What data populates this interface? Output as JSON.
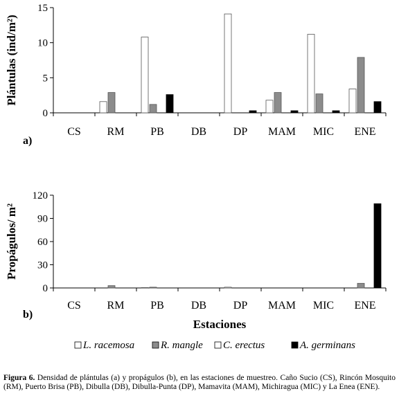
{
  "chart_data": [
    {
      "type": "bar",
      "panel_label": "a)",
      "ylabel": "Plántulas (ind/m²)",
      "xlabel": "",
      "ylim": [
        0,
        15
      ],
      "yticks": [
        0,
        5,
        10,
        15
      ],
      "categories": [
        "CS",
        "RM",
        "PB",
        "DB",
        "DP",
        "MAM",
        "MIC",
        "ENE"
      ],
      "series": [
        {
          "name": "L. racemosa",
          "values": [
            0,
            1.6,
            10.8,
            0,
            14.1,
            1.8,
            11.2,
            3.4
          ]
        },
        {
          "name": "R. mangle",
          "values": [
            0,
            2.9,
            1.2,
            0,
            0,
            2.9,
            2.7,
            7.9
          ]
        },
        {
          "name": "C. erectus",
          "values": [
            0,
            0,
            0,
            0,
            0,
            0,
            0,
            0
          ]
        },
        {
          "name": "A. germinans",
          "values": [
            0,
            0,
            2.6,
            0,
            0.3,
            0.3,
            0.3,
            1.6
          ]
        }
      ]
    },
    {
      "type": "bar",
      "panel_label": "b)",
      "ylabel": "Propágulos/ m²",
      "xlabel": "Estaciones",
      "ylim": [
        0,
        120
      ],
      "yticks": [
        0,
        30,
        60,
        90,
        120
      ],
      "categories": [
        "CS",
        "RM",
        "PB",
        "DB",
        "DP",
        "MAM",
        "MIC",
        "ENE"
      ],
      "series": [
        {
          "name": "L. racemosa",
          "values": [
            0,
            0,
            0.5,
            0,
            1,
            0,
            0,
            0
          ]
        },
        {
          "name": "R. mangle",
          "values": [
            0,
            3,
            1,
            0,
            0,
            0,
            0,
            6
          ]
        },
        {
          "name": "C. erectus",
          "values": [
            0,
            0,
            0,
            0,
            0,
            0,
            0,
            0
          ]
        },
        {
          "name": "A. germinans",
          "values": [
            0,
            0,
            0,
            0,
            0,
            0,
            0,
            109
          ]
        }
      ]
    }
  ],
  "legend": [
    {
      "name": "L. racemosa",
      "color": "#ffffff"
    },
    {
      "name": "R. mangle",
      "color": "#8c8c8c"
    },
    {
      "name": "C. erectus",
      "color": "#ffffff"
    },
    {
      "name": "A. germinans",
      "color": "#000000"
    }
  ],
  "series_colors": [
    "#ffffff",
    "#8c8c8c",
    "#ffffff",
    "#000000"
  ],
  "caption": {
    "label": "Figura 6.",
    "text": "Densidad de plántulas (a) y propágulos (b), en las estaciones de muestreo. Caño Sucio (CS), Rincón Mosquito (RM), Puerto Brisa (PB), Dibulla (DB), Dibulla-Punta (DP), Mamavita (MAM), Michiragua (MIC) y La Enea (ENE)."
  }
}
